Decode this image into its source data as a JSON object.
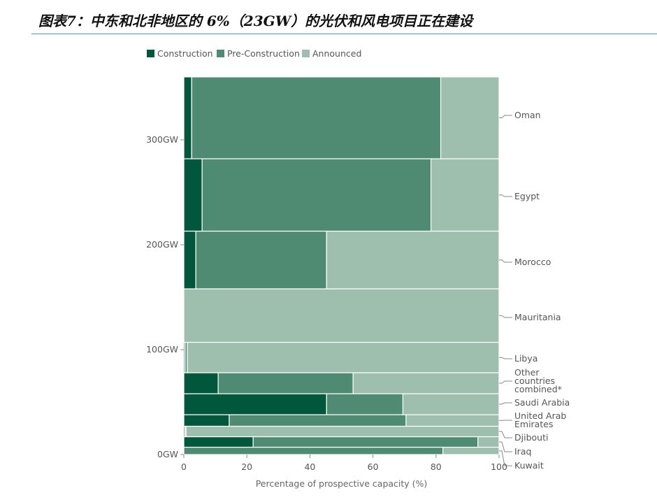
{
  "figure_title": "图表7：中东和北非地区的 6%（23GW）的光伏和风电项目正在建设",
  "chart_data": {
    "type": "bar",
    "subtype": "marimekko-stacked-horizontal",
    "legend_position": "top-left",
    "legend": [
      "Construction",
      "Pre-Construction",
      "Announced"
    ],
    "colors": {
      "Construction": "#00573b",
      "Pre-Construction": "#4f8a72",
      "Announced": "#9ebfae"
    },
    "xlabel": "Percentage of prospective capacity (%)",
    "xlim": [
      0,
      100
    ],
    "x_ticks": [
      0,
      20,
      40,
      60,
      80,
      100
    ],
    "y_ticks": [
      "0GW",
      "100GW",
      "200GW",
      "300GW"
    ],
    "y_tick_values": [
      0,
      100,
      200,
      300
    ],
    "ylim": [
      0,
      363
    ],
    "grid": false,
    "categories": [
      {
        "name": "Kuwait",
        "capacity_gw": 7,
        "construction": 0,
        "pre_construction": 82.2,
        "announced": 17.8
      },
      {
        "name": "Iraq",
        "capacity_gw": 10,
        "construction": 22,
        "pre_construction": 71.3,
        "announced": 6.7
      },
      {
        "name": "Djibouti",
        "capacity_gw": 10,
        "construction": 0.4,
        "pre_construction": 0.3,
        "announced": 99.3
      },
      {
        "name": "United Arab Emirates",
        "capacity_gw": 11,
        "construction": 14.4,
        "pre_construction": 56.1,
        "announced": 29.5
      },
      {
        "name": "Saudi Arabia",
        "capacity_gw": 20,
        "construction": 45.3,
        "pre_construction": 24.2,
        "announced": 30.5
      },
      {
        "name": "Other countries combined*",
        "capacity_gw": 20,
        "construction": 10.9,
        "pre_construction": 42.8,
        "announced": 46.3
      },
      {
        "name": "Libya",
        "capacity_gw": 29,
        "construction": 0.4,
        "pre_construction": 0.7,
        "announced": 98.9
      },
      {
        "name": "Mauritania",
        "capacity_gw": 51,
        "construction": 0,
        "pre_construction": 0,
        "announced": 100
      },
      {
        "name": "Morocco",
        "capacity_gw": 55,
        "construction": 3.8,
        "pre_construction": 41.5,
        "announced": 54.7
      },
      {
        "name": "Egypt",
        "capacity_gw": 69,
        "construction": 5.8,
        "pre_construction": 72.6,
        "announced": 21.6
      },
      {
        "name": "Oman",
        "capacity_gw": 78,
        "construction": 2.5,
        "pre_construction": 79,
        "announced": 18.5
      }
    ]
  }
}
